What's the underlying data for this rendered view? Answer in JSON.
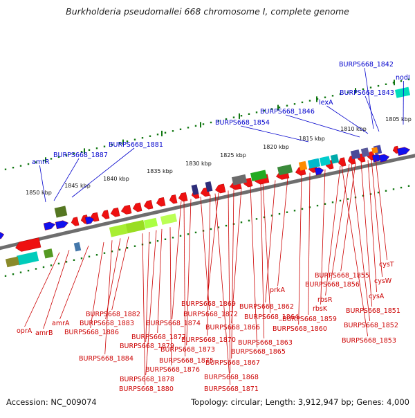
{
  "title": "Burkholderia pseudomallei 668 chromosome I, complete genome",
  "footer": {
    "accession": "Accession: NC_009074",
    "topology": "Topology: circular; Length: 3,912,947 bp; Genes: 4,000"
  },
  "colors": {
    "backbone": "#6e6e6e",
    "forward_label": "#0000cc",
    "reverse_label": "#cc0000",
    "tick": "#117711"
  },
  "scale_labels": [
    "1805 kbp",
    "1810 kbp",
    "1815 kbp",
    "1820 kbp",
    "1825 kbp",
    "1830 kbp",
    "1835 kbp",
    "1840 kbp",
    "1845 kbp",
    "1850 kbp"
  ],
  "forward_genes": [
    "BURPS668_1842",
    "nodI",
    "BURPS668_1843",
    "lexA",
    "BURPS668_1846",
    "BURPS668_1854",
    "BURPS668_1881",
    "BURPS668_1887",
    "amrR"
  ],
  "reverse_genes": [
    "cysT",
    "cysW",
    "cysA",
    "BURPS668_1855",
    "BURPS668_1856",
    "rbsR",
    "rbsK",
    "BURPS668_1851",
    "BURPS668_1852",
    "BURPS668_1853",
    "BURPS668_1859",
    "BURPS668_1860",
    "prkA",
    "BURPS668_1862",
    "BURPS668_1863",
    "BURPS668_1864",
    "BURPS668_1865",
    "BURPS668_1866",
    "BURPS668_1867",
    "BURPS668_1868",
    "BURPS668_1869",
    "BURPS668_1870",
    "BURPS668_1871",
    "BURPS668_1872",
    "BURPS668_1873",
    "BURPS668_1874",
    "BURPS668_1875",
    "BURPS668_1876",
    "BURPS668_1877",
    "BURPS668_1878",
    "BURPS668_1879",
    "BURPS668_1880",
    "BURPS668_1882",
    "BURPS668_1883",
    "BURPS668_1884",
    "BURPS668_1886",
    "amrA",
    "amrB",
    "oprA"
  ]
}
